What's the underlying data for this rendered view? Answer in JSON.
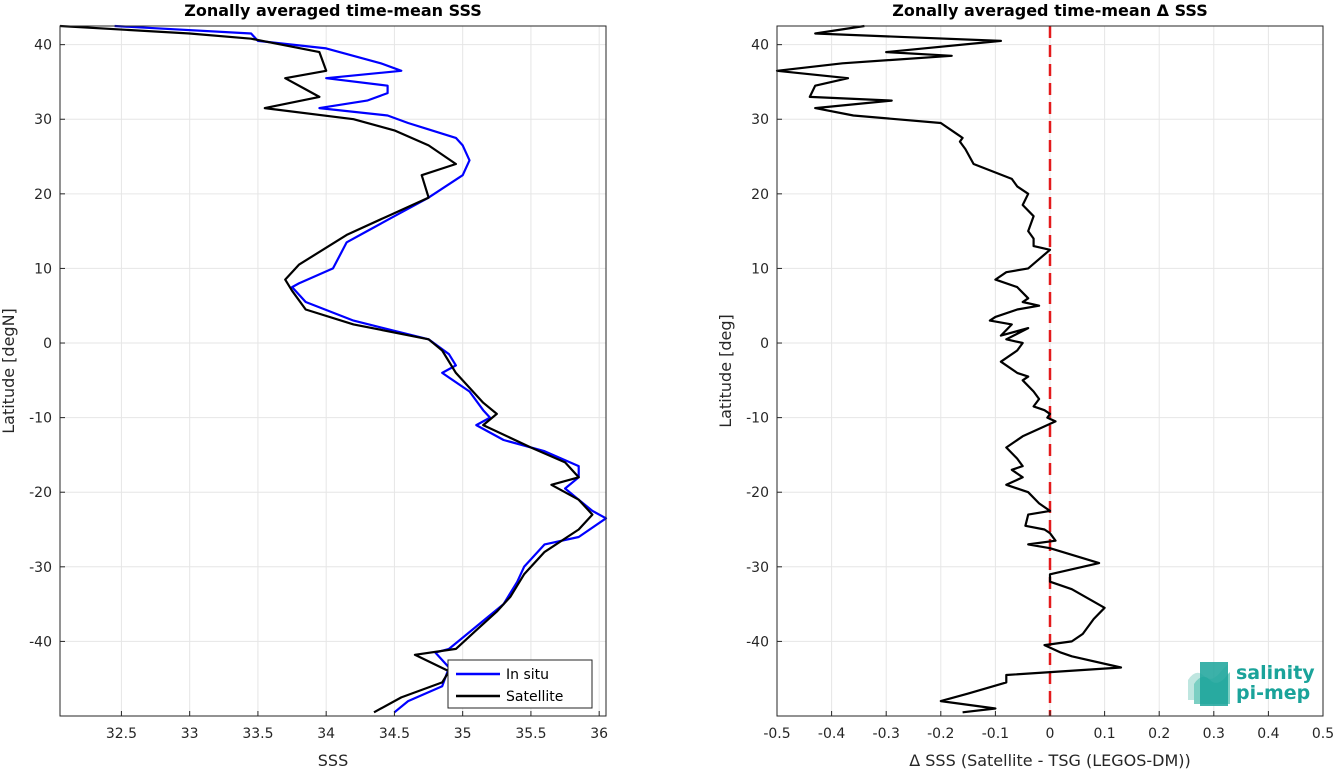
{
  "colors": {
    "insitu": "#0000ff",
    "satellite": "#000000",
    "zero_line": "#e31a1c",
    "logo": "#1aa39a"
  },
  "logo": {
    "line1": "salinity",
    "line2": "pi-mep",
    "icon": "salinity-wave-icon"
  },
  "chart_data": [
    {
      "type": "line",
      "title": "Zonally averaged time-mean SSS",
      "xlabel": "SSS",
      "ylabel": "Latitude [degN]",
      "xlim": [
        32.05,
        36.05
      ],
      "ylim": [
        -50,
        42.5
      ],
      "xticks": [
        32.5,
        33,
        33.5,
        34,
        34.5,
        35,
        35.5,
        36
      ],
      "yticks": [
        -40,
        -30,
        -20,
        -10,
        0,
        10,
        20,
        30,
        40
      ],
      "grid": true,
      "legend_position": "bottom-right",
      "series": [
        {
          "name": "In situ",
          "color_key": "insitu",
          "points": [
            [
              32.45,
              42.5
            ],
            [
              33.45,
              41.5
            ],
            [
              33.5,
              40.5
            ],
            [
              34.0,
              39.5
            ],
            [
              34.4,
              37.5
            ],
            [
              34.55,
              36.5
            ],
            [
              34.0,
              35.5
            ],
            [
              34.45,
              34.5
            ],
            [
              34.45,
              33.5
            ],
            [
              34.3,
              32.5
            ],
            [
              33.95,
              31.5
            ],
            [
              34.45,
              30.5
            ],
            [
              34.6,
              29.5
            ],
            [
              34.95,
              27.5
            ],
            [
              35.0,
              26.5
            ],
            [
              35.05,
              24.5
            ],
            [
              35.0,
              22.5
            ],
            [
              34.75,
              19.5
            ],
            [
              34.5,
              17.0
            ],
            [
              34.3,
              15.0
            ],
            [
              34.15,
              13.5
            ],
            [
              34.05,
              10.0
            ],
            [
              33.8,
              8.0
            ],
            [
              33.75,
              7.5
            ],
            [
              33.85,
              5.5
            ],
            [
              34.2,
              3.0
            ],
            [
              34.75,
              0.5
            ],
            [
              34.9,
              -1.5
            ],
            [
              34.95,
              -3.0
            ],
            [
              34.85,
              -4.0
            ],
            [
              35.05,
              -6.5
            ],
            [
              35.15,
              -9.0
            ],
            [
              35.2,
              -10.0
            ],
            [
              35.1,
              -11.0
            ],
            [
              35.3,
              -13.0
            ],
            [
              35.6,
              -14.5
            ],
            [
              35.85,
              -16.5
            ],
            [
              35.85,
              -18.0
            ],
            [
              35.75,
              -19.5
            ],
            [
              35.85,
              -21.0
            ],
            [
              35.95,
              -22.5
            ],
            [
              36.05,
              -23.5
            ],
            [
              35.85,
              -26.0
            ],
            [
              35.6,
              -27.0
            ],
            [
              35.45,
              -30.0
            ],
            [
              35.4,
              -32.0
            ],
            [
              35.3,
              -35.0
            ],
            [
              35.1,
              -38.0
            ],
            [
              34.9,
              -41.0
            ],
            [
              34.8,
              -41.5
            ],
            [
              34.9,
              -43.5
            ],
            [
              34.85,
              -46.0
            ],
            [
              34.6,
              -48.0
            ],
            [
              34.5,
              -49.5
            ]
          ]
        },
        {
          "name": "Satellite",
          "color_key": "satellite",
          "points": [
            [
              32.05,
              42.5
            ],
            [
              33.0,
              41.5
            ],
            [
              33.45,
              40.8
            ],
            [
              33.95,
              39.0
            ],
            [
              34.0,
              36.5
            ],
            [
              33.7,
              35.5
            ],
            [
              33.85,
              34.0
            ],
            [
              33.95,
              33.0
            ],
            [
              33.55,
              31.5
            ],
            [
              34.2,
              30.0
            ],
            [
              34.5,
              28.5
            ],
            [
              34.75,
              26.5
            ],
            [
              34.95,
              24.0
            ],
            [
              34.7,
              22.5
            ],
            [
              34.75,
              19.5
            ],
            [
              34.45,
              17.0
            ],
            [
              34.15,
              14.5
            ],
            [
              33.8,
              10.5
            ],
            [
              33.7,
              8.5
            ],
            [
              33.75,
              7.0
            ],
            [
              33.85,
              4.5
            ],
            [
              34.2,
              2.5
            ],
            [
              34.75,
              0.5
            ],
            [
              34.85,
              -1.0
            ],
            [
              34.95,
              -4.0
            ],
            [
              35.05,
              -6.0
            ],
            [
              35.15,
              -8.0
            ],
            [
              35.25,
              -9.5
            ],
            [
              35.15,
              -11.0
            ],
            [
              35.5,
              -14.0
            ],
            [
              35.75,
              -16.0
            ],
            [
              35.85,
              -18.0
            ],
            [
              35.65,
              -19.0
            ],
            [
              35.85,
              -21.0
            ],
            [
              35.95,
              -23.0
            ],
            [
              35.85,
              -25.0
            ],
            [
              35.6,
              -28.0
            ],
            [
              35.45,
              -31.0
            ],
            [
              35.35,
              -34.0
            ],
            [
              35.25,
              -36.0
            ],
            [
              35.1,
              -38.5
            ],
            [
              34.95,
              -41.0
            ],
            [
              34.65,
              -41.8
            ],
            [
              34.9,
              -44.0
            ],
            [
              34.85,
              -45.5
            ],
            [
              34.55,
              -47.5
            ],
            [
              34.35,
              -49.5
            ]
          ]
        }
      ]
    },
    {
      "type": "line",
      "title": "Zonally averaged time-mean Δ SSS",
      "xlabel": "Δ SSS (Satellite - TSG (LEGOS-DM))",
      "ylabel": "Latitude [deg]",
      "xlim": [
        -0.5,
        0.5
      ],
      "ylim": [
        -50,
        42.5
      ],
      "xticks": [
        -0.5,
        -0.4,
        -0.3,
        -0.2,
        -0.1,
        0,
        0.1,
        0.2,
        0.3,
        0.4,
        0.5
      ],
      "yticks": [
        -40,
        -30,
        -20,
        -10,
        0,
        10,
        20,
        30,
        40
      ],
      "grid": true,
      "reference_line_x": 0,
      "series": [
        {
          "color_key": "satellite",
          "points": [
            [
              -0.34,
              42.5
            ],
            [
              -0.43,
              41.5
            ],
            [
              -0.09,
              40.5
            ],
            [
              -0.3,
              39.0
            ],
            [
              -0.18,
              38.5
            ],
            [
              -0.38,
              37.5
            ],
            [
              -0.5,
              36.5
            ],
            [
              -0.37,
              35.5
            ],
            [
              -0.43,
              34.5
            ],
            [
              -0.44,
              33.0
            ],
            [
              -0.29,
              32.5
            ],
            [
              -0.43,
              31.5
            ],
            [
              -0.36,
              30.5
            ],
            [
              -0.2,
              29.5
            ],
            [
              -0.17,
              28.0
            ],
            [
              -0.16,
              27.5
            ],
            [
              -0.165,
              27.0
            ],
            [
              -0.155,
              26.0
            ],
            [
              -0.14,
              24.0
            ],
            [
              -0.07,
              22.0
            ],
            [
              -0.06,
              21.0
            ],
            [
              -0.04,
              20.0
            ],
            [
              -0.05,
              18.5
            ],
            [
              -0.03,
              17.0
            ],
            [
              -0.04,
              15.0
            ],
            [
              -0.03,
              14.0
            ],
            [
              -0.03,
              13.0
            ],
            [
              0.0,
              12.5
            ],
            [
              -0.04,
              10.0
            ],
            [
              -0.08,
              9.5
            ],
            [
              -0.1,
              8.5
            ],
            [
              -0.06,
              7.5
            ],
            [
              -0.04,
              6.0
            ],
            [
              -0.05,
              5.5
            ],
            [
              -0.02,
              5.0
            ],
            [
              -0.06,
              4.5
            ],
            [
              -0.1,
              3.5
            ],
            [
              -0.11,
              3.0
            ],
            [
              -0.07,
              2.5
            ],
            [
              -0.09,
              1.0
            ],
            [
              -0.04,
              2.0
            ],
            [
              -0.08,
              0.5
            ],
            [
              -0.05,
              0.0
            ],
            [
              -0.06,
              -1.0
            ],
            [
              -0.09,
              -2.5
            ],
            [
              -0.06,
              -4.0
            ],
            [
              -0.04,
              -4.5
            ],
            [
              -0.05,
              -5.0
            ],
            [
              -0.03,
              -6.5
            ],
            [
              -0.02,
              -7.5
            ],
            [
              -0.03,
              -8.5
            ],
            [
              -0.01,
              -9.0
            ],
            [
              0.0,
              -9.5
            ],
            [
              -0.005,
              -10.0
            ],
            [
              0.01,
              -10.5
            ],
            [
              -0.05,
              -12.5
            ],
            [
              -0.08,
              -14.0
            ],
            [
              -0.06,
              -15.5
            ],
            [
              -0.05,
              -16.5
            ],
            [
              -0.07,
              -17.0
            ],
            [
              -0.05,
              -18.0
            ],
            [
              -0.08,
              -19.0
            ],
            [
              -0.04,
              -20.0
            ],
            [
              -0.02,
              -21.5
            ],
            [
              0.0,
              -22.5
            ],
            [
              -0.04,
              -23.0
            ],
            [
              -0.045,
              -24.5
            ],
            [
              -0.01,
              -25.0
            ],
            [
              0.0,
              -25.5
            ],
            [
              0.01,
              -26.5
            ],
            [
              -0.04,
              -27.0
            ],
            [
              0.0,
              -27.5
            ],
            [
              0.09,
              -29.5
            ],
            [
              0.0,
              -31.0
            ],
            [
              0.0,
              -32.0
            ],
            [
              0.04,
              -33.0
            ],
            [
              0.1,
              -35.5
            ],
            [
              0.08,
              -37.0
            ],
            [
              0.06,
              -39.0
            ],
            [
              0.04,
              -40.0
            ],
            [
              -0.01,
              -40.5
            ],
            [
              0.02,
              -41.5
            ],
            [
              0.04,
              -42.0
            ],
            [
              0.13,
              -43.5
            ],
            [
              -0.08,
              -44.5
            ],
            [
              -0.08,
              -45.5
            ],
            [
              -0.15,
              -47.0
            ],
            [
              -0.2,
              -48.0
            ],
            [
              -0.1,
              -49.0
            ],
            [
              -0.16,
              -49.5
            ]
          ]
        }
      ]
    }
  ]
}
